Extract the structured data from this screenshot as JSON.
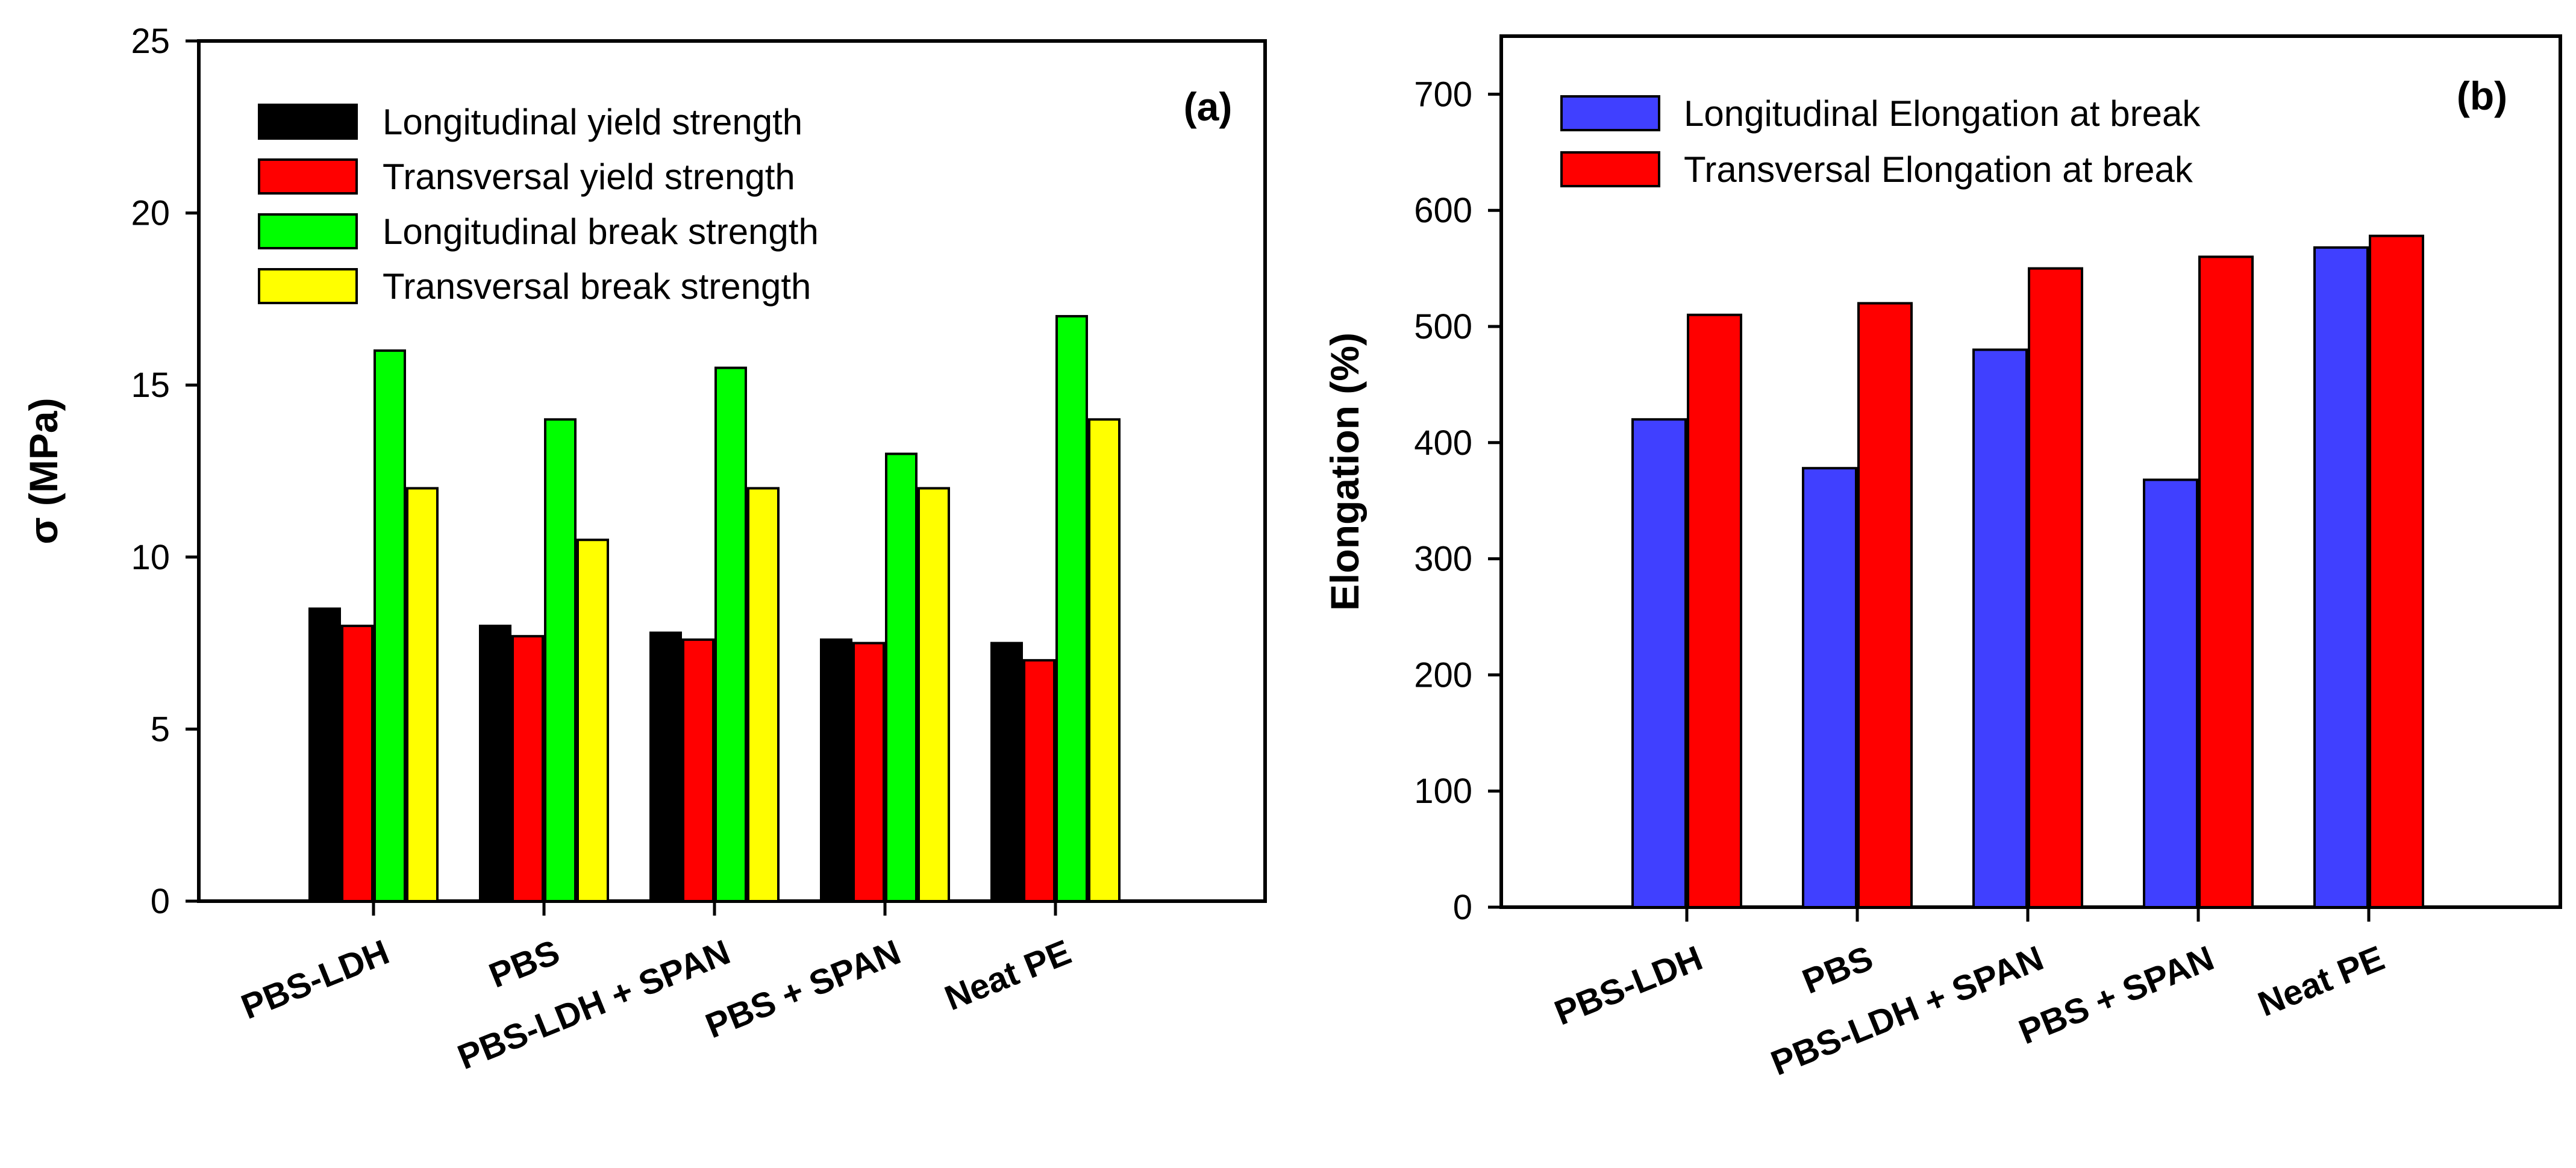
{
  "chart_data": [
    {
      "type": "bar",
      "panel_label": "(a)",
      "title": "",
      "xlabel": "",
      "ylabel": "σ (MPa)",
      "ylim": [
        0,
        25
      ],
      "yticks": [
        0,
        5,
        10,
        15,
        20,
        25
      ],
      "categories": [
        "PBS-LDH",
        "PBS",
        "PBS-LDH + SPAN",
        "PBS + SPAN",
        "Neat PE"
      ],
      "series": [
        {
          "name": "Longitudinal yield strength",
          "color": "#000000",
          "values": [
            8.5,
            8.0,
            7.8,
            7.6,
            7.5
          ]
        },
        {
          "name": "Transversal yield strength",
          "color": "#ff0000",
          "values": [
            8.0,
            7.7,
            7.6,
            7.5,
            7.0
          ]
        },
        {
          "name": "Longitudinal break strength",
          "color": "#00ff00",
          "values": [
            16.0,
            14.0,
            15.5,
            13.0,
            17.0
          ]
        },
        {
          "name": "Transversal break strength",
          "color": "#ffff00",
          "values": [
            12.0,
            10.5,
            12.0,
            12.0,
            14.0
          ]
        }
      ],
      "legend_position": "top-left",
      "grid": false
    },
    {
      "type": "bar",
      "panel_label": "(b)",
      "title": "",
      "xlabel": "",
      "ylabel": "Elongation (%)",
      "ylim": [
        0,
        750
      ],
      "yticks": [
        0,
        100,
        200,
        300,
        400,
        500,
        600,
        700
      ],
      "categories": [
        "PBS-LDH",
        "PBS",
        "PBS-LDH + SPAN",
        "PBS + SPAN",
        "Neat PE"
      ],
      "series": [
        {
          "name": "Longitudinal Elongation at break",
          "color": "#4040ff",
          "values": [
            420,
            378,
            480,
            368,
            568
          ]
        },
        {
          "name": "Transversal Elongation at break",
          "color": "#ff0000",
          "values": [
            510,
            520,
            550,
            560,
            578
          ]
        }
      ],
      "legend_position": "top-left",
      "grid": false
    }
  ]
}
